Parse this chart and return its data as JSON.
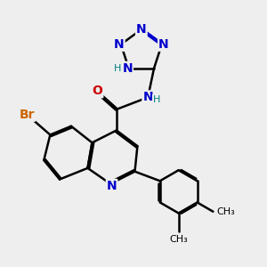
{
  "bg_color": "#eeeeee",
  "bond_color": "#000000",
  "N_color": "#0000cc",
  "O_color": "#cc0000",
  "Br_color": "#cc6600",
  "NH_color": "#008080",
  "line_width": 1.8,
  "font_size_atoms": 10,
  "font_size_small": 8,
  "xlim": [
    0,
    10
  ],
  "ylim": [
    0,
    10
  ]
}
